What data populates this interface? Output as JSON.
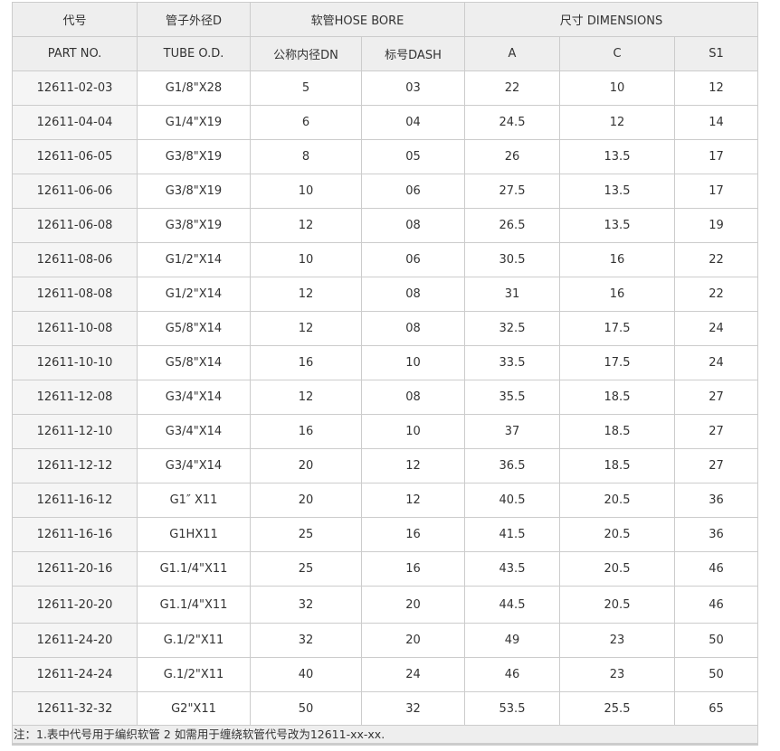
{
  "header_row1": {
    "code": "代号",
    "tube": "管子外径D",
    "hose_bore": "软管HOSE BORE",
    "dimensions": "尺寸 DIMENSIONS"
  },
  "header_row2": [
    "PART NO.",
    "TUBE O.D.",
    "公称内径DN",
    "标号DASH",
    "A",
    "C",
    "S1"
  ],
  "rows": [
    [
      "12611-02-03",
      "G1/8\"X28",
      "5",
      "03",
      "22",
      "10",
      "12"
    ],
    [
      "12611-04-04",
      "G1/4\"X19",
      "6",
      "04",
      "24.5",
      "12",
      "14"
    ],
    [
      "12611-06-05",
      "G3/8\"X19",
      "8",
      "05",
      "26",
      "13.5",
      "17"
    ],
    [
      "12611-06-06",
      "G3/8\"X19",
      "10",
      "06",
      "27.5",
      "13.5",
      "17"
    ],
    [
      "12611-06-08",
      "G3/8\"X19",
      "12",
      "08",
      "26.5",
      "13.5",
      "19"
    ],
    [
      "12611-08-06",
      "G1/2\"X14",
      "10",
      "06",
      "30.5",
      "16",
      "22"
    ],
    [
      "12611-08-08",
      "G1/2\"X14",
      "12",
      "08",
      "31",
      "16",
      "22"
    ],
    [
      "12611-10-08",
      "G5/8\"X14",
      "12",
      "08",
      "32.5",
      "17.5",
      "24"
    ],
    [
      "12611-10-10",
      "G5/8\"X14",
      "16",
      "10",
      "33.5",
      "17.5",
      "24"
    ],
    [
      "12611-12-08",
      "G3/4\"X14",
      "12",
      "08",
      "35.5",
      "18.5",
      "27"
    ],
    [
      "12611-12-10",
      "G3/4\"X14",
      "16",
      "10",
      "37",
      "18.5",
      "27"
    ],
    [
      "12611-12-12",
      "G3/4\"X14",
      "20",
      "12",
      "36.5",
      "18.5",
      "27"
    ],
    [
      "12611-16-12",
      "G1″ X11",
      "20",
      "12",
      "40.5",
      "20.5",
      "36"
    ],
    [
      "12611-16-16",
      "G1HX11",
      "25",
      "16",
      "41.5",
      "20.5",
      "36"
    ],
    [
      "12611-20-16",
      "G1.1/4\"X11",
      "25",
      "16",
      "43.5",
      "20.5",
      "46"
    ],
    [
      "12611-20-20",
      "G1.1/4\"X11",
      "32",
      "20",
      "44.5",
      "20.5",
      "46"
    ],
    [
      "12611-24-20",
      "G.1/2\"X11",
      "32",
      "20",
      "49",
      "23",
      "50"
    ],
    [
      "12611-24-24",
      "G.1/2\"X11",
      "40",
      "24",
      "46",
      "23",
      "50"
    ],
    [
      "12611-32-32",
      "G2\"X11",
      "50",
      "32",
      "53.5",
      "25.5",
      "65"
    ]
  ],
  "note": "注：1.表中代号用于编织软管 2 如需用于缠绕软管代号改为12611-xx-xx."
}
